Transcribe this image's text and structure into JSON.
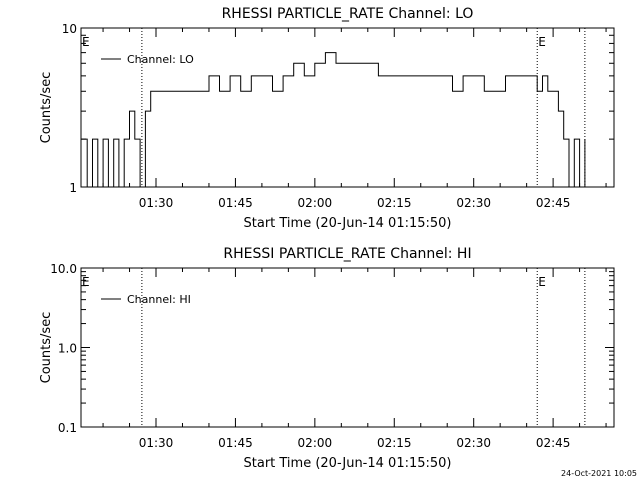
{
  "chart_data": [
    {
      "type": "line",
      "title": "RHESSI PARTICLE_RATE Channel: LO",
      "xlabel": "Start Time (20-Jun-14 01:15:50)",
      "ylabel": "Counts/sec",
      "yscale": "log",
      "xlim": [
        "01:15:50",
        "02:56:30"
      ],
      "ylim": [
        1,
        10
      ],
      "x_ticks": [
        "01:30",
        "01:45",
        "02:00",
        "02:15",
        "02:30",
        "02:45"
      ],
      "y_ticks": [
        "1",
        "10"
      ],
      "legend": {
        "label": "Channel: LO",
        "position": "top-left"
      },
      "markers": [
        {
          "label": "E",
          "x": "01:15:50"
        },
        {
          "x": "01:27:20"
        },
        {
          "label": "E",
          "x": "02:42:00"
        },
        {
          "x": "02:51:00"
        }
      ],
      "series": [
        {
          "name": "Channel: LO",
          "x": [
            "01:15:50",
            "01:17:00",
            "01:18:00",
            "01:19:00",
            "01:20:00",
            "01:21:00",
            "01:22:00",
            "01:23:00",
            "01:24:00",
            "01:25:00",
            "01:26:00",
            "01:27:00",
            "01:28:00",
            "01:29:00",
            "01:30:00",
            "01:32:00",
            "01:34:00",
            "01:36:00",
            "01:38:00",
            "01:40:00",
            "01:42:00",
            "01:44:00",
            "01:46:00",
            "01:48:00",
            "01:50:00",
            "01:52:00",
            "01:54:00",
            "01:56:00",
            "01:58:00",
            "02:00:00",
            "02:02:00",
            "02:04:00",
            "02:06:00",
            "02:08:00",
            "02:10:00",
            "02:12:00",
            "02:14:00",
            "02:16:00",
            "02:18:00",
            "02:20:00",
            "02:22:00",
            "02:24:00",
            "02:26:00",
            "02:28:00",
            "02:30:00",
            "02:32:00",
            "02:34:00",
            "02:36:00",
            "02:38:00",
            "02:40:00",
            "02:42:00",
            "02:43:00",
            "02:44:00",
            "02:45:00",
            "02:46:00",
            "02:47:00",
            "02:48:00",
            "02:49:00",
            "02:50:00",
            "02:51:00"
          ],
          "y": [
            2,
            1,
            2,
            1,
            2,
            1,
            2,
            1,
            2,
            3,
            2,
            1,
            3,
            4,
            4,
            4,
            4,
            4,
            4,
            5,
            4,
            5,
            4,
            5,
            5,
            4,
            5,
            6,
            5,
            6,
            7,
            6,
            6,
            6,
            6,
            5,
            5,
            5,
            5,
            5,
            5,
            5,
            4,
            5,
            5,
            4,
            4,
            5,
            5,
            5,
            4,
            5,
            4,
            4,
            3,
            2,
            1,
            2,
            1,
            2
          ]
        }
      ]
    },
    {
      "type": "line",
      "title": "RHESSI PARTICLE_RATE Channel: HI",
      "xlabel": "Start Time (20-Jun-14 01:15:50)",
      "ylabel": "Counts/sec",
      "yscale": "log",
      "xlim": [
        "01:15:50",
        "02:56:30"
      ],
      "ylim": [
        0.1,
        10
      ],
      "x_ticks": [
        "01:30",
        "01:45",
        "02:00",
        "02:15",
        "02:30",
        "02:45"
      ],
      "y_ticks": [
        "0.1",
        "1.0",
        "10.0"
      ],
      "legend": {
        "label": "Channel: HI",
        "position": "top-left"
      },
      "markers": [
        {
          "label": "E",
          "x": "01:15:50"
        },
        {
          "x": "01:27:20"
        },
        {
          "label": "E",
          "x": "02:42:00"
        },
        {
          "x": "02:51:00"
        }
      ],
      "series": [
        {
          "name": "Channel: HI",
          "x": [],
          "y": []
        }
      ]
    }
  ],
  "footer": {
    "timestamp": "24-Oct-2021 10:05"
  }
}
